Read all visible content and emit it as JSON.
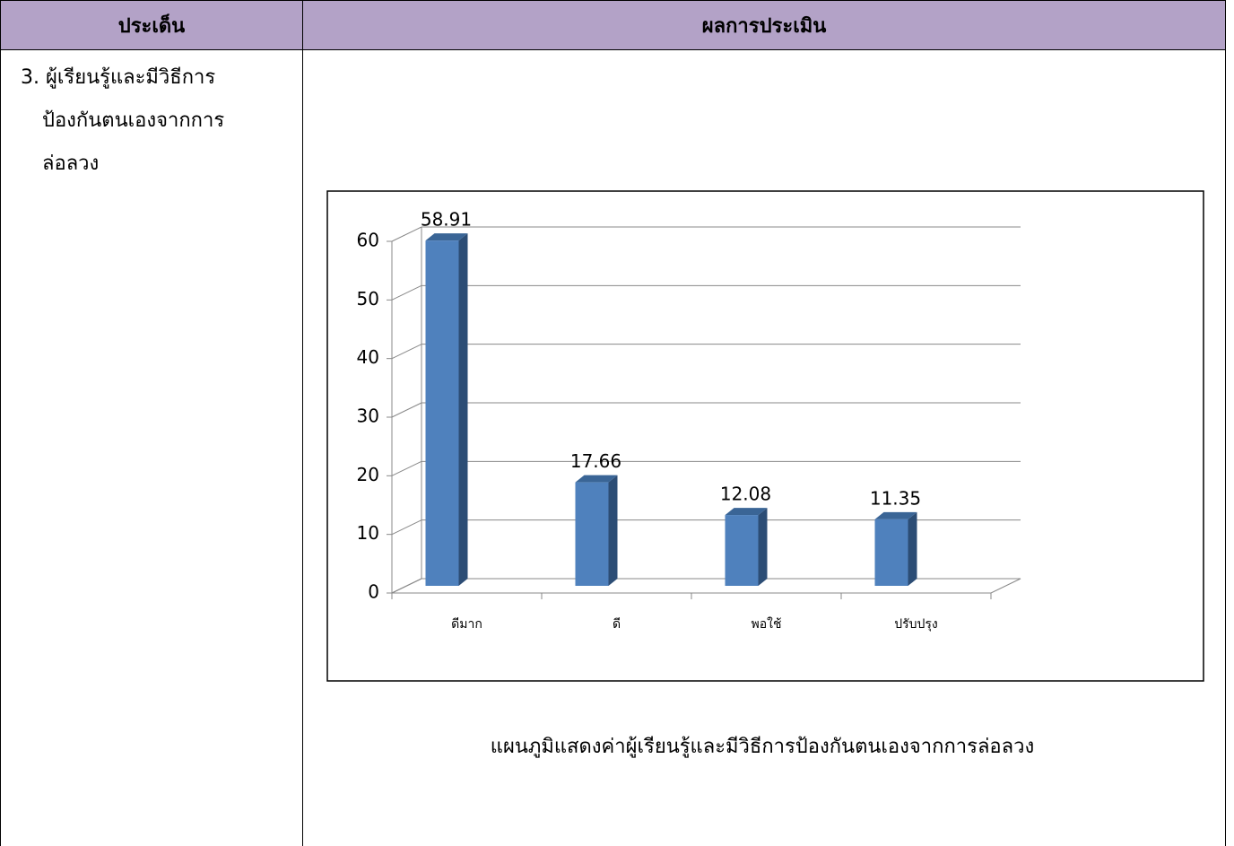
{
  "table": {
    "headers": [
      "ประเด็น",
      "ผลการประเมิน"
    ],
    "rows": [
      {
        "topic_lines": [
          "3. ผู้เรียนรู้และมีวิธีการ",
          "ป้องกันตนเองจากการ",
          "ล่อลวง"
        ]
      }
    ]
  },
  "chart_data": {
    "type": "bar3d",
    "categories": [
      "ดีมาก",
      "ดี",
      "พอใช้",
      "ปรับปรุง"
    ],
    "values": [
      58.91,
      17.66,
      12.08,
      11.35
    ],
    "color": "#4f81bd",
    "ylim": [
      0,
      60
    ],
    "yticks": [
      0,
      10,
      20,
      30,
      40,
      50,
      60
    ],
    "grid": true
  },
  "caption": "แผนภูมิแสดงค่าผู้เรียนรู้และมีวิธีการป้องกันตนเองจากการล่อลวง"
}
